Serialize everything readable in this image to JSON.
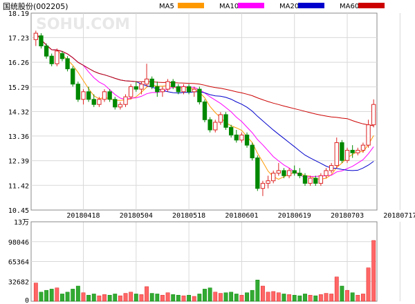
{
  "chart_data": {
    "type": "candlestick",
    "title": "国统股份(002205)",
    "watermark": "SOHU.COM",
    "legend": [
      {
        "name": "MA5",
        "color": "#ff9900"
      },
      {
        "name": "MA10",
        "color": "#ff00ff"
      },
      {
        "name": "MA20",
        "color": "#0000cc"
      },
      {
        "name": "MA60",
        "color": "#cc0000"
      }
    ],
    "colors": {
      "up": "#dd2222",
      "down": "#008800",
      "grid": "#d8d8d8",
      "frame": "#888888"
    },
    "price_axis": {
      "ticks": [
        "18.19",
        "17.23",
        "16.26",
        "15.29",
        "14.32",
        "13.36",
        "12.39",
        "11.42",
        "10.45"
      ],
      "ylim": [
        10.45,
        18.19
      ]
    },
    "volume_axis": {
      "unit": "万",
      "top_label": "13",
      "ticks": [
        "98046",
        "65364",
        "32682",
        "0"
      ],
      "ylim": [
        0,
        130728
      ]
    },
    "x_labels": [
      {
        "label": "20180418",
        "index": 9
      },
      {
        "label": "20180504",
        "index": 19
      },
      {
        "label": "20180518",
        "index": 29
      },
      {
        "label": "20180601",
        "index": 39
      },
      {
        "label": "20180619",
        "index": 49
      },
      {
        "label": "20180703",
        "index": 59
      },
      {
        "label": "20180717",
        "index": 69
      }
    ],
    "candles": [
      [
        17.15,
        17.5,
        16.9,
        17.4,
        30000
      ],
      [
        17.3,
        17.4,
        16.8,
        16.9,
        15000
      ],
      [
        16.9,
        17.0,
        16.4,
        16.5,
        18000
      ],
      [
        16.5,
        16.6,
        16.1,
        16.2,
        20000
      ],
      [
        16.2,
        16.8,
        16.1,
        16.7,
        22000
      ],
      [
        16.6,
        16.7,
        16.3,
        16.4,
        12000
      ],
      [
        16.4,
        16.5,
        15.9,
        16.0,
        15000
      ],
      [
        16.0,
        16.1,
        15.3,
        15.4,
        20000
      ],
      [
        15.4,
        15.5,
        14.7,
        14.8,
        25000
      ],
      [
        14.8,
        15.2,
        14.6,
        15.1,
        14000
      ],
      [
        15.1,
        15.3,
        14.7,
        14.8,
        10000
      ],
      [
        14.8,
        15.0,
        14.5,
        14.6,
        12000
      ],
      [
        14.6,
        14.9,
        14.5,
        14.8,
        9000
      ],
      [
        14.8,
        15.2,
        14.7,
        15.1,
        11000
      ],
      [
        15.1,
        15.2,
        14.7,
        14.8,
        10000
      ],
      [
        14.8,
        14.9,
        14.4,
        14.5,
        12000
      ],
      [
        14.5,
        14.7,
        14.4,
        14.6,
        9000
      ],
      [
        14.6,
        15.0,
        14.5,
        14.9,
        13000
      ],
      [
        14.9,
        15.4,
        14.8,
        15.3,
        15000
      ],
      [
        15.3,
        15.5,
        15.1,
        15.2,
        12000
      ],
      [
        15.2,
        15.5,
        15.0,
        15.4,
        11000
      ],
      [
        15.4,
        16.2,
        15.3,
        15.6,
        24000
      ],
      [
        15.6,
        15.7,
        15.2,
        15.3,
        13000
      ],
      [
        15.3,
        15.5,
        14.9,
        15.1,
        12000
      ],
      [
        15.1,
        15.3,
        14.9,
        15.2,
        10000
      ],
      [
        15.2,
        15.6,
        15.1,
        15.5,
        14000
      ],
      [
        15.5,
        15.6,
        15.2,
        15.3,
        11000
      ],
      [
        15.3,
        15.4,
        15.0,
        15.1,
        10000
      ],
      [
        15.1,
        15.4,
        15.0,
        15.3,
        9000
      ],
      [
        15.3,
        15.4,
        15.0,
        15.1,
        10000
      ],
      [
        15.1,
        15.3,
        14.9,
        15.2,
        8000
      ],
      [
        15.2,
        15.3,
        14.6,
        14.7,
        12000
      ],
      [
        14.7,
        14.8,
        13.9,
        14.0,
        20000
      ],
      [
        14.0,
        14.1,
        13.5,
        13.6,
        22000
      ],
      [
        13.6,
        14.0,
        13.5,
        13.9,
        15000
      ],
      [
        13.9,
        14.3,
        13.8,
        14.2,
        13000
      ],
      [
        14.2,
        14.3,
        13.6,
        13.7,
        14000
      ],
      [
        13.7,
        13.8,
        13.3,
        13.4,
        15000
      ],
      [
        13.4,
        13.6,
        13.1,
        13.2,
        12000
      ],
      [
        13.2,
        13.5,
        13.1,
        13.4,
        10000
      ],
      [
        13.4,
        13.5,
        12.9,
        13.0,
        14000
      ],
      [
        13.0,
        13.1,
        12.4,
        12.5,
        18000
      ],
      [
        12.5,
        12.6,
        11.2,
        11.3,
        35000
      ],
      [
        11.3,
        11.6,
        11.0,
        11.5,
        25000
      ],
      [
        11.5,
        11.8,
        11.3,
        11.6,
        15000
      ],
      [
        11.6,
        12.0,
        11.5,
        11.9,
        16000
      ],
      [
        11.9,
        12.3,
        11.8,
        12.0,
        14000
      ],
      [
        12.0,
        12.1,
        11.7,
        11.8,
        12000
      ],
      [
        11.8,
        12.1,
        11.7,
        12.0,
        11000
      ],
      [
        12.0,
        12.2,
        11.8,
        11.9,
        10000
      ],
      [
        11.9,
        12.1,
        11.7,
        11.8,
        9000
      ],
      [
        11.8,
        11.9,
        11.4,
        11.5,
        12000
      ],
      [
        11.5,
        11.8,
        11.4,
        11.7,
        10000
      ],
      [
        11.7,
        11.8,
        11.4,
        11.5,
        9000
      ],
      [
        11.5,
        11.9,
        11.4,
        11.8,
        11000
      ],
      [
        11.8,
        12.1,
        11.7,
        12.0,
        13000
      ],
      [
        12.0,
        12.3,
        11.9,
        12.2,
        12000
      ],
      [
        12.2,
        13.3,
        12.1,
        13.1,
        40000
      ],
      [
        13.1,
        13.2,
        12.3,
        12.4,
        25000
      ],
      [
        12.4,
        12.9,
        12.3,
        12.8,
        18000
      ],
      [
        12.8,
        13.0,
        12.5,
        12.7,
        14000
      ],
      [
        12.7,
        12.9,
        12.6,
        12.8,
        10000
      ],
      [
        12.8,
        13.1,
        12.7,
        13.0,
        12000
      ],
      [
        13.0,
        14.0,
        12.9,
        13.8,
        55000
      ],
      [
        13.8,
        14.8,
        13.7,
        14.6,
        100000
      ]
    ]
  }
}
